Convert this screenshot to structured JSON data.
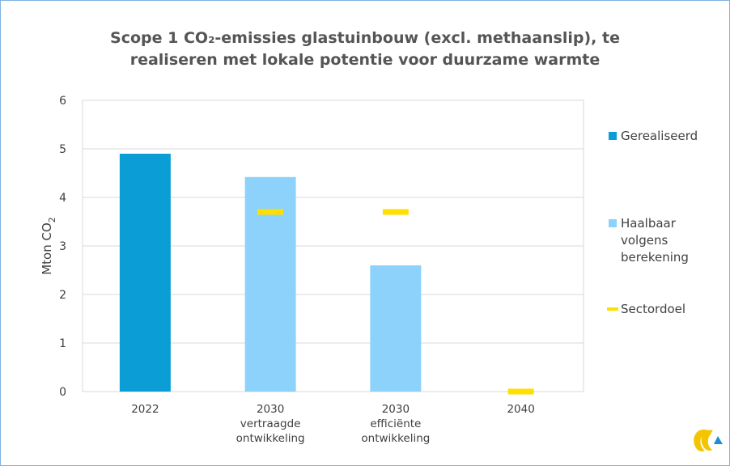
{
  "chart_data": {
    "type": "bar",
    "title_lines": [
      "Scope 1 CO₂-emissies glastuinbouw (excl. methaanslip), te",
      "realiseren met lokale potentie voor duurzame warmte"
    ],
    "ylabel": "Mton CO",
    "ylabel_sub": "2",
    "ylim": [
      0,
      6
    ],
    "yticks": [
      "0",
      "1",
      "2",
      "3",
      "4",
      "5",
      "6"
    ],
    "categories": [
      {
        "lines": [
          "2022"
        ]
      },
      {
        "lines": [
          "2030",
          "vertraagde",
          "ontwikkeling"
        ]
      },
      {
        "lines": [
          "2030",
          "efficiënte",
          "ontwikkeling"
        ]
      },
      {
        "lines": [
          "2040"
        ]
      }
    ],
    "series": [
      {
        "name": "Gerealiseerd",
        "kind": "bar",
        "color": "#0a9dd6",
        "values": [
          4.9,
          null,
          null,
          null
        ]
      },
      {
        "name": "Haalbaar volgens berekening",
        "legend_lines": [
          "Haalbaar",
          "volgens",
          "berekening"
        ],
        "kind": "bar",
        "color": "#8dd2fb",
        "values": [
          null,
          4.42,
          2.6,
          null
        ]
      },
      {
        "name": "Sectordoel",
        "kind": "marker",
        "color": "#ffdf00",
        "values": [
          null,
          3.7,
          3.7,
          0.0
        ]
      }
    ],
    "grid": true,
    "legend_position": "right"
  },
  "colors": {
    "grid": "#d9d9d9",
    "axis": "#bfbfbf",
    "logo_yellow": "#f2c500",
    "logo_blue": "#1b8fd1"
  },
  "logo_icon": "company-logo-icon"
}
